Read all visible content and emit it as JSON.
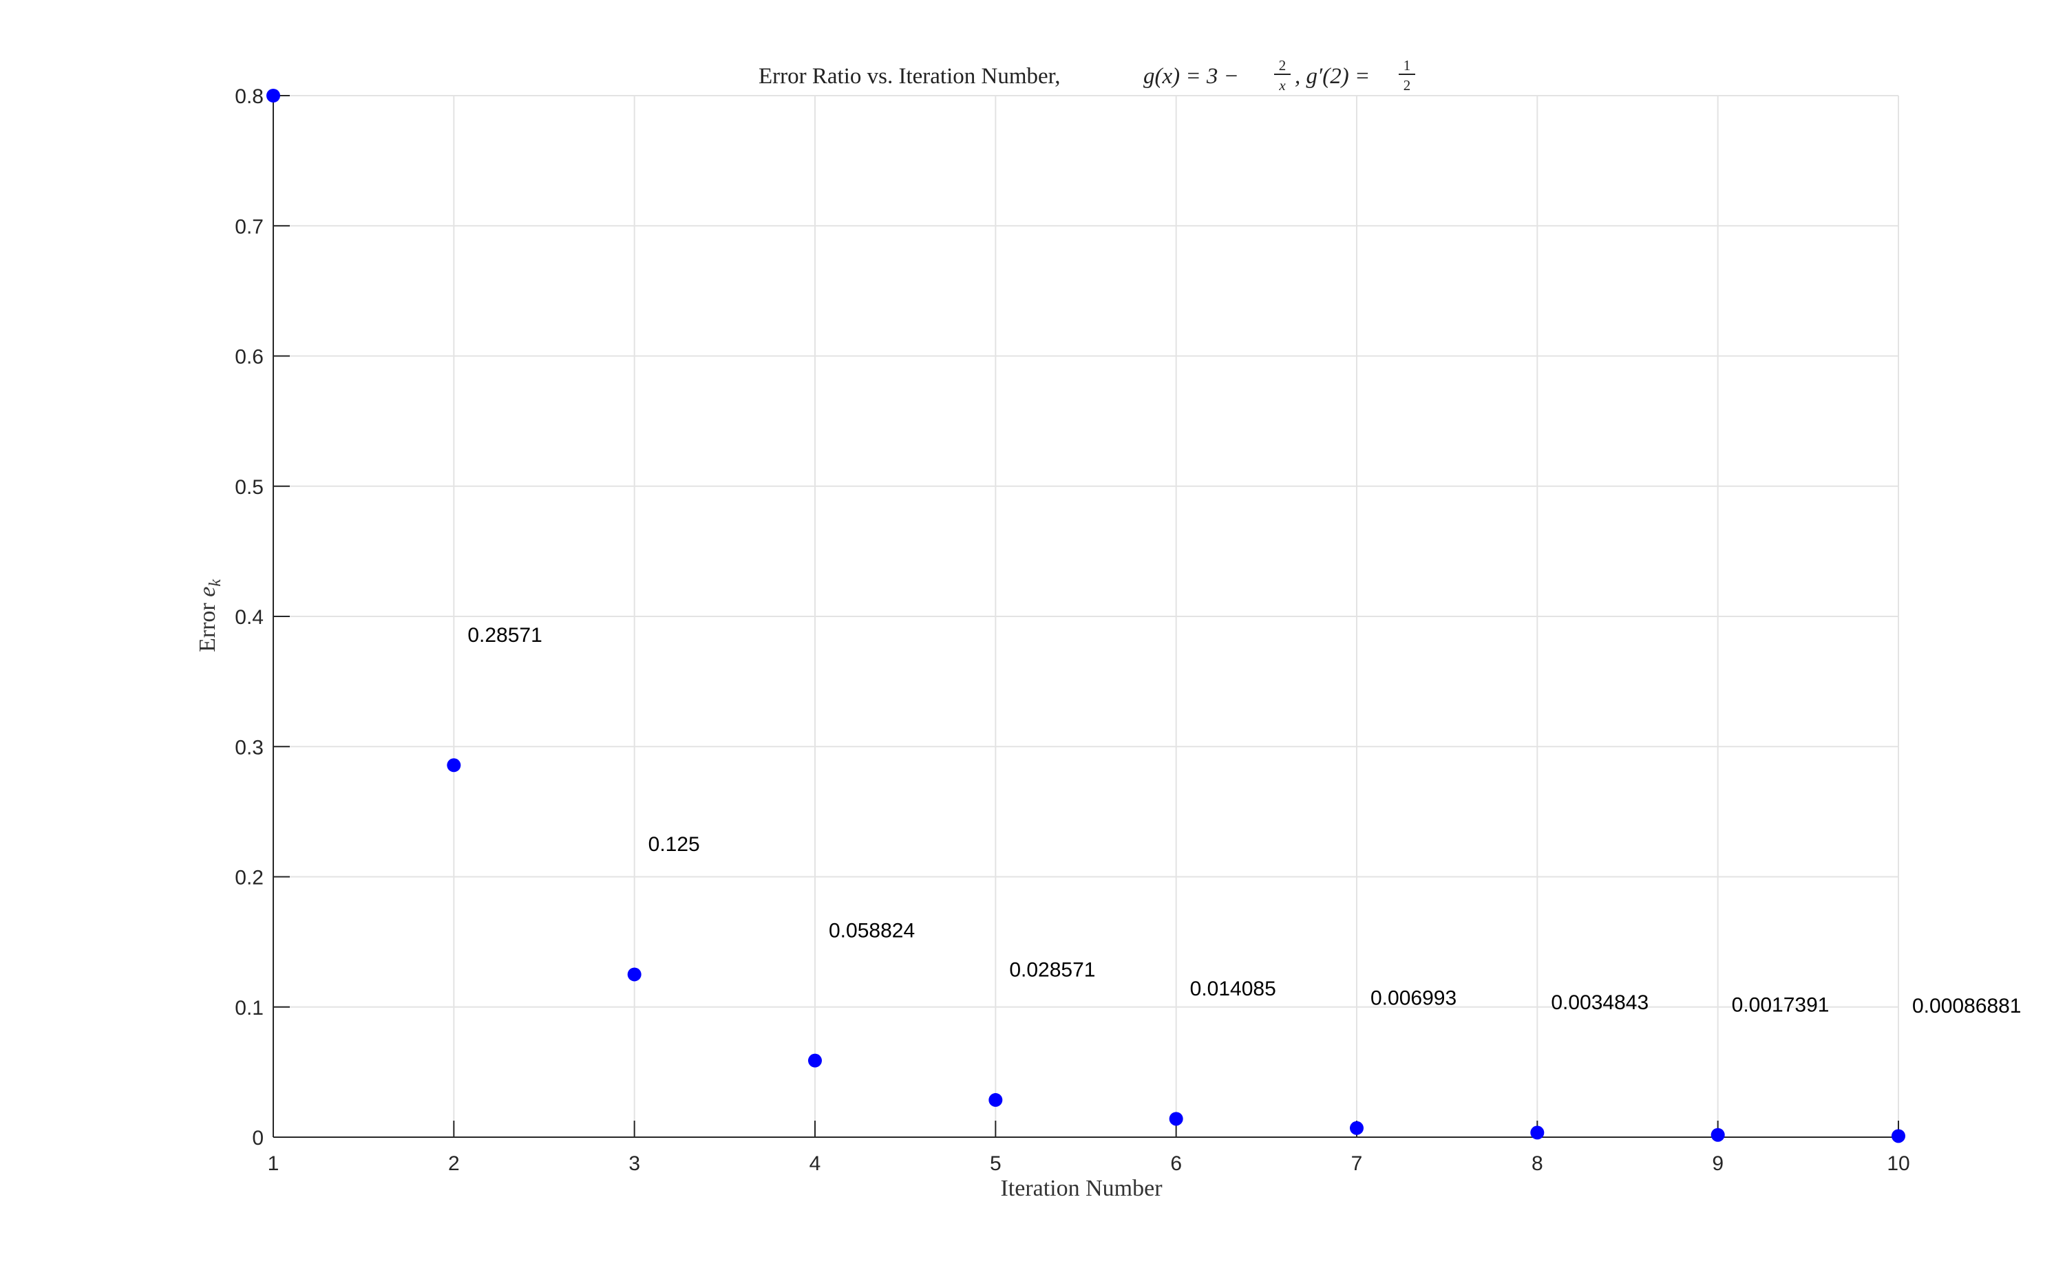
{
  "chart_data": {
    "type": "scatter",
    "title": "Error Ratio vs. Iteration Number, g(x) = 3 − 2/x, g′(2) = 1/2",
    "title_parts": {
      "prefix": "Error Ratio vs. Iteration Number, ",
      "gx": "g(x) = 3 −",
      "frac1_num": "2",
      "frac1_den": "x",
      "mid": ", g′(2) =",
      "frac2_num": "1",
      "frac2_den": "2"
    },
    "xlabel": "Iteration Number",
    "ylabel_prefix": "Error ",
    "ylabel_var": "e",
    "ylabel_sub": "k",
    "xlim": [
      1,
      10
    ],
    "ylim": [
      0,
      0.8
    ],
    "xticks": [
      1,
      2,
      3,
      4,
      5,
      6,
      7,
      8,
      9,
      10
    ],
    "xtick_labels": [
      "1",
      "2",
      "3",
      "4",
      "5",
      "6",
      "7",
      "8",
      "9",
      "10"
    ],
    "yticks": [
      0,
      0.1,
      0.2,
      0.3,
      0.4,
      0.5,
      0.6,
      0.7,
      0.8
    ],
    "ytick_labels": [
      "0",
      "0.1",
      "0.2",
      "0.3",
      "0.4",
      "0.5",
      "0.6",
      "0.7",
      "0.8"
    ],
    "grid": true,
    "marker_color": "#0000ff",
    "x": [
      1,
      2,
      3,
      4,
      5,
      6,
      7,
      8,
      9,
      10
    ],
    "y": [
      0.8,
      0.28571,
      0.125,
      0.058824,
      0.028571,
      0.014085,
      0.006993,
      0.0034843,
      0.0017391,
      0.00086881
    ],
    "data_labels": [
      {
        "x": 2,
        "text": "0.28571"
      },
      {
        "x": 3,
        "text": "0.125"
      },
      {
        "x": 4,
        "text": "0.058824"
      },
      {
        "x": 5,
        "text": "0.028571"
      },
      {
        "x": 6,
        "text": "0.014085"
      },
      {
        "x": 7,
        "text": "0.006993"
      },
      {
        "x": 8,
        "text": "0.0034843"
      },
      {
        "x": 9,
        "text": "0.0017391"
      },
      {
        "x": 10,
        "text": "0.00086881"
      }
    ]
  }
}
